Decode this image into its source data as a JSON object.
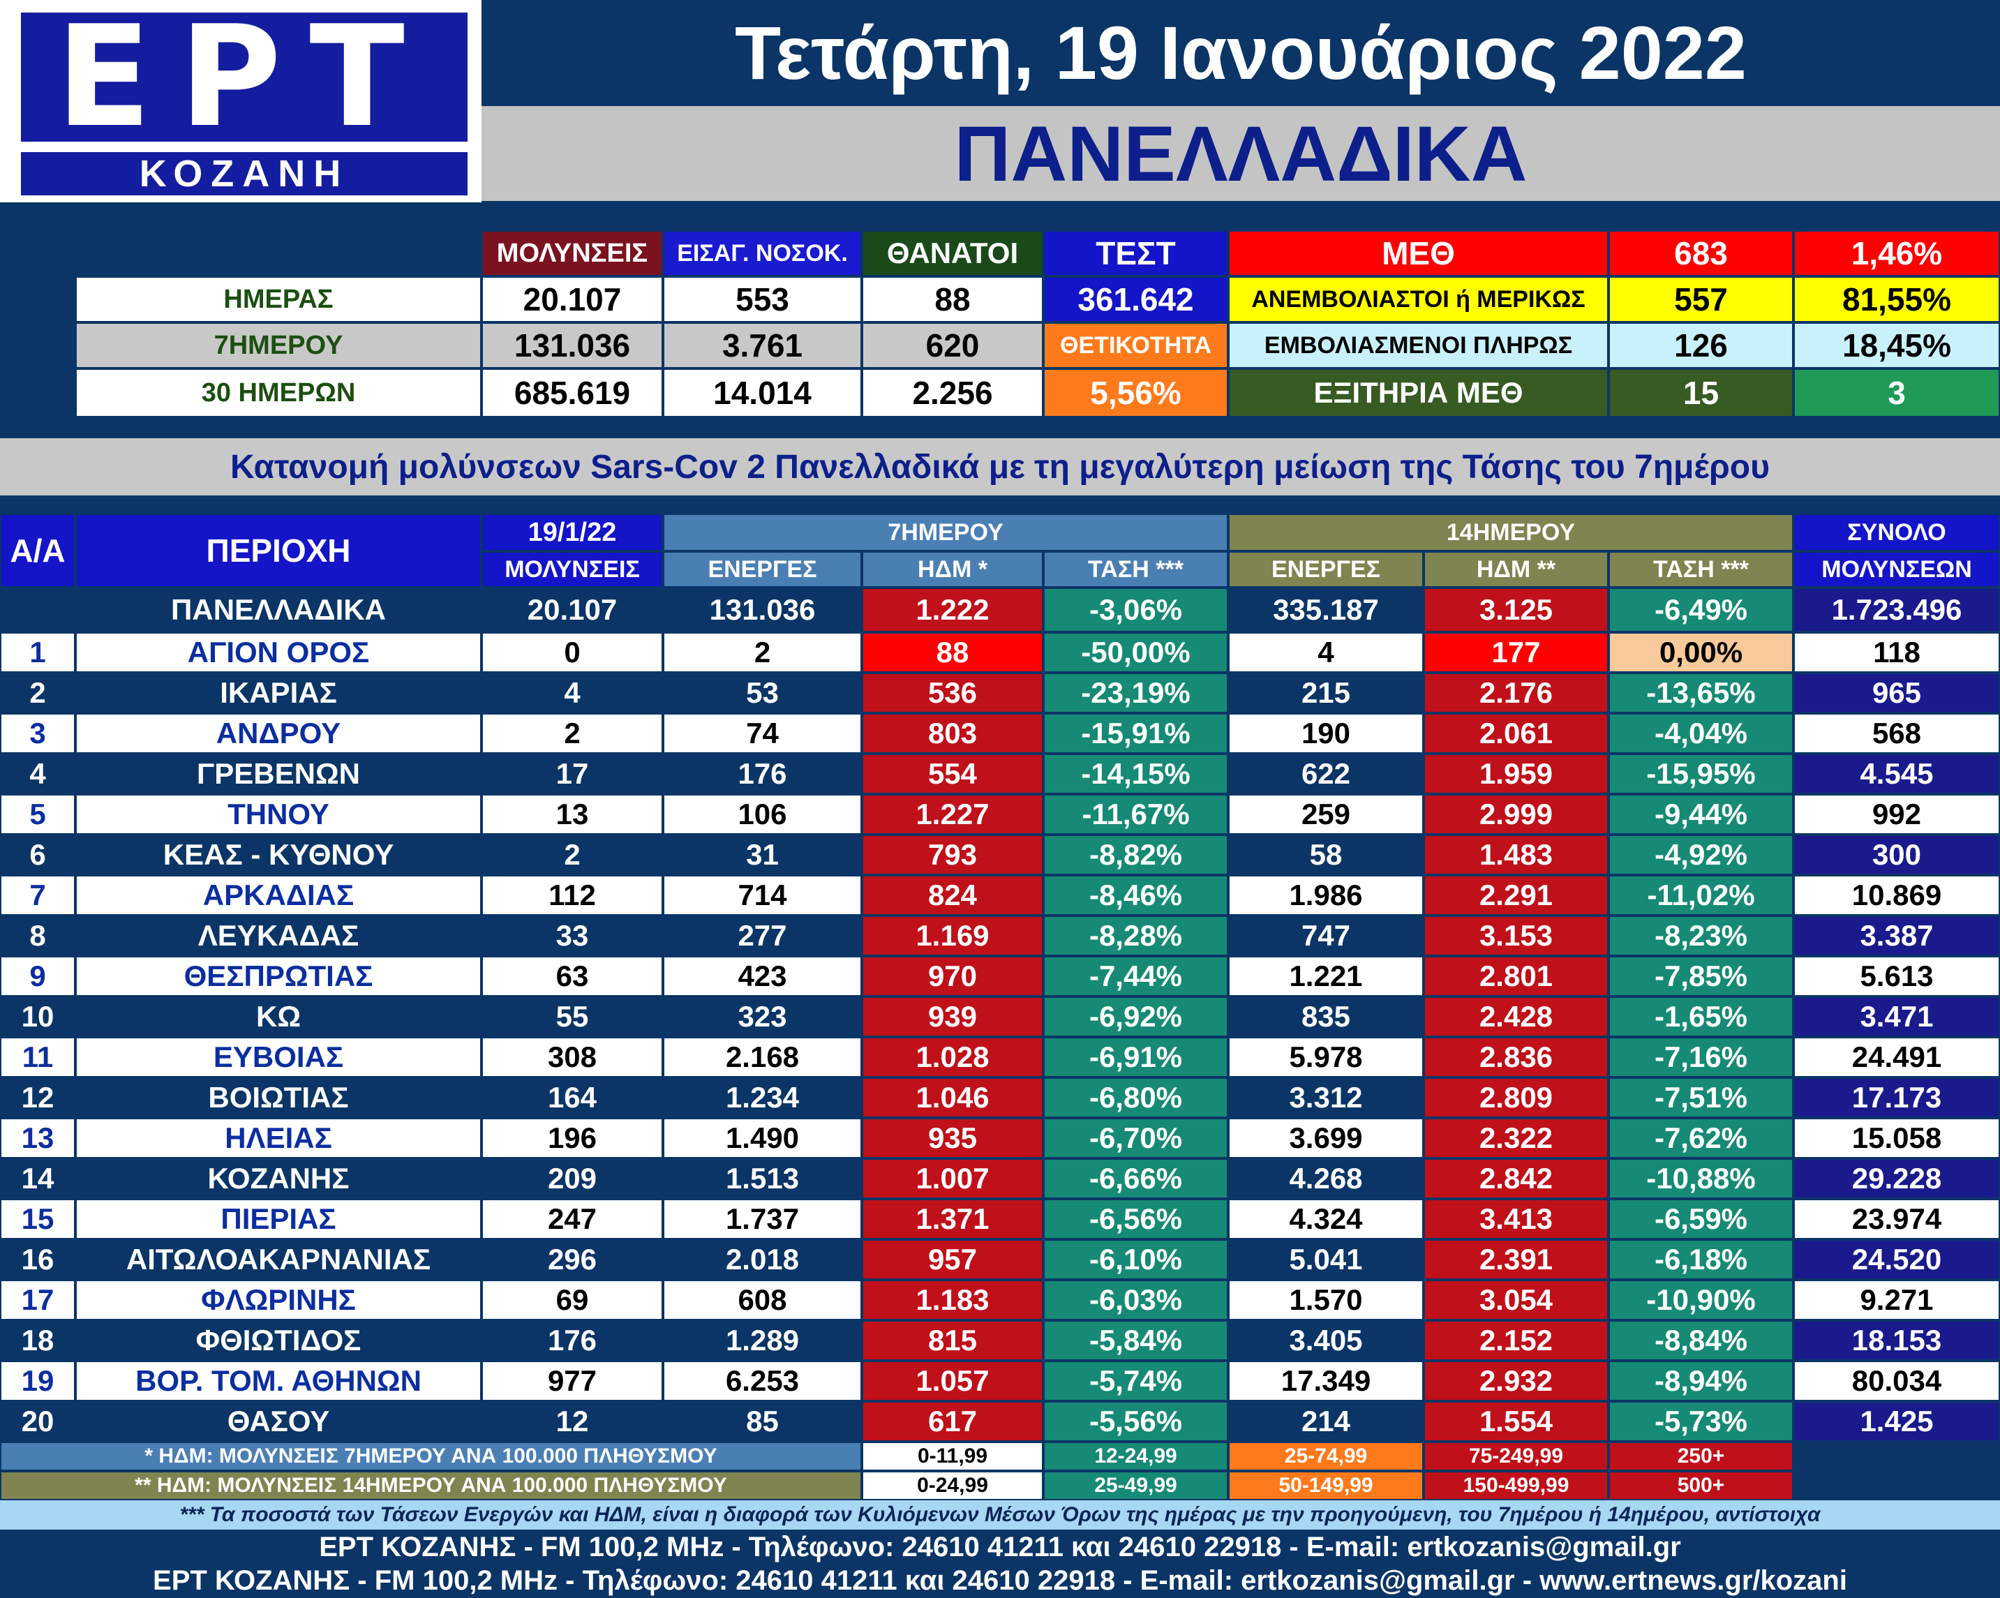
{
  "logo": {
    "brand": "ΕΡΤ",
    "city": "ΚΟΖΑΝΗ"
  },
  "header": {
    "date": "Τετάρτη, 19 Ιανουάριος 2022",
    "region": "ΠΑΝΕΛΛΑΔΙΚΑ"
  },
  "summary": {
    "headers": {
      "infections": "ΜΟΛΥΝΣΕΙΣ",
      "admissions": "ΕΙΣΑΓ. ΝΟΣΟΚ.",
      "deaths": "ΘΑΝΑΤΟΙ",
      "tests": "ΤΕΣΤ",
      "icu": "ΜΕΘ",
      "icu_count": "683",
      "icu_pct": "1,46%"
    },
    "rows": [
      {
        "label": "ΗΜΕΡΑΣ",
        "infections": "20.107",
        "admissions": "553",
        "deaths": "88"
      },
      {
        "label": "7ΗΜΕΡΟΥ",
        "infections": "131.036",
        "admissions": "3.761",
        "deaths": "620"
      },
      {
        "label": "30 ΗΜΕΡΩΝ",
        "infections": "685.619",
        "admissions": "14.014",
        "deaths": "2.256"
      }
    ],
    "tests_value": "361.642",
    "positivity_label": "ΘΕΤΙΚΟΤΗΤΑ",
    "positivity_value": "5,56%",
    "icu_rows": [
      {
        "label": "ΑΝΕΜΒΟΛΙΑΣΤΟΙ ή ΜΕΡΙΚΩΣ",
        "count": "557",
        "pct": "81,55%"
      },
      {
        "label": "ΕΜΒΟΛΙΑΣΜΕΝΟΙ ΠΛΗΡΩΣ",
        "count": "126",
        "pct": "18,45%"
      },
      {
        "label": "ΕΞΙΤΗΡΙΑ ΜΕΘ",
        "count": "15",
        "pct": "3"
      }
    ]
  },
  "subtitle": "Κατανομή μολύνσεων Sars-Cov 2 Πανελλαδικά με τη μεγαλύτερη μείωση της Τάσης του 7ημέρου",
  "table": {
    "headers": {
      "aa": "Α/Α",
      "area": "ΠΕΡΙΟΧΗ",
      "date": "19/1/22",
      "date_sub": "ΜΟΛΥΝΣΕΙΣ",
      "g7": "7ΗΜΕΡΟΥ",
      "g14": "14ΗΜΕΡΟΥ",
      "active": "ΕΝΕΡΓΕΣ",
      "hdm7": "ΗΔΜ *",
      "hdm14": "ΗΔΜ **",
      "trend": "ΤΑΣΗ ***",
      "total": "ΣΥΝΟΛΟ",
      "total_sub": "ΜΟΛΥΝΣΕΩΝ"
    },
    "national": {
      "area": "ΠΑΝΕΛΛΑΔΙΚΑ",
      "day": "20.107",
      "a7": "131.036",
      "h7": "1.222",
      "t7": "-3,06%",
      "a14": "335.187",
      "h14": "3.125",
      "t14": "-6,49%",
      "total": "1.723.496"
    },
    "rows": [
      {
        "n": "1",
        "area": "ΑΓΙΟΝ ΟΡΟΣ",
        "day": "0",
        "a7": "2",
        "h7": "88",
        "t7": "-50,00%",
        "a14": "4",
        "h14": "177",
        "t14": "0,00%",
        "total": "118"
      },
      {
        "n": "2",
        "area": "ΙΚΑΡΙΑΣ",
        "day": "4",
        "a7": "53",
        "h7": "536",
        "t7": "-23,19%",
        "a14": "215",
        "h14": "2.176",
        "t14": "-13,65%",
        "total": "965"
      },
      {
        "n": "3",
        "area": "ΑΝΔΡΟΥ",
        "day": "2",
        "a7": "74",
        "h7": "803",
        "t7": "-15,91%",
        "a14": "190",
        "h14": "2.061",
        "t14": "-4,04%",
        "total": "568"
      },
      {
        "n": "4",
        "area": "ΓΡΕΒΕΝΩΝ",
        "day": "17",
        "a7": "176",
        "h7": "554",
        "t7": "-14,15%",
        "a14": "622",
        "h14": "1.959",
        "t14": "-15,95%",
        "total": "4.545"
      },
      {
        "n": "5",
        "area": "ΤΗΝΟΥ",
        "day": "13",
        "a7": "106",
        "h7": "1.227",
        "t7": "-11,67%",
        "a14": "259",
        "h14": "2.999",
        "t14": "-9,44%",
        "total": "992"
      },
      {
        "n": "6",
        "area": "ΚΕΑΣ - ΚΥΘΝΟΥ",
        "day": "2",
        "a7": "31",
        "h7": "793",
        "t7": "-8,82%",
        "a14": "58",
        "h14": "1.483",
        "t14": "-4,92%",
        "total": "300"
      },
      {
        "n": "7",
        "area": "ΑΡΚΑΔΙΑΣ",
        "day": "112",
        "a7": "714",
        "h7": "824",
        "t7": "-8,46%",
        "a14": "1.986",
        "h14": "2.291",
        "t14": "-11,02%",
        "total": "10.869"
      },
      {
        "n": "8",
        "area": "ΛΕΥΚΑΔΑΣ",
        "day": "33",
        "a7": "277",
        "h7": "1.169",
        "t7": "-8,28%",
        "a14": "747",
        "h14": "3.153",
        "t14": "-8,23%",
        "total": "3.387"
      },
      {
        "n": "9",
        "area": "ΘΕΣΠΡΩΤΙΑΣ",
        "day": "63",
        "a7": "423",
        "h7": "970",
        "t7": "-7,44%",
        "a14": "1.221",
        "h14": "2.801",
        "t14": "-7,85%",
        "total": "5.613"
      },
      {
        "n": "10",
        "area": "ΚΩ",
        "day": "55",
        "a7": "323",
        "h7": "939",
        "t7": "-6,92%",
        "a14": "835",
        "h14": "2.428",
        "t14": "-1,65%",
        "total": "3.471"
      },
      {
        "n": "11",
        "area": "ΕΥΒΟΙΑΣ",
        "day": "308",
        "a7": "2.168",
        "h7": "1.028",
        "t7": "-6,91%",
        "a14": "5.978",
        "h14": "2.836",
        "t14": "-7,16%",
        "total": "24.491"
      },
      {
        "n": "12",
        "area": "ΒΟΙΩΤΙΑΣ",
        "day": "164",
        "a7": "1.234",
        "h7": "1.046",
        "t7": "-6,80%",
        "a14": "3.312",
        "h14": "2.809",
        "t14": "-7,51%",
        "total": "17.173"
      },
      {
        "n": "13",
        "area": "ΗΛΕΙΑΣ",
        "day": "196",
        "a7": "1.490",
        "h7": "935",
        "t7": "-6,70%",
        "a14": "3.699",
        "h14": "2.322",
        "t14": "-7,62%",
        "total": "15.058"
      },
      {
        "n": "14",
        "area": "ΚΟΖΑΝΗΣ",
        "day": "209",
        "a7": "1.513",
        "h7": "1.007",
        "t7": "-6,66%",
        "a14": "4.268",
        "h14": "2.842",
        "t14": "-10,88%",
        "total": "29.228"
      },
      {
        "n": "15",
        "area": "ΠΙΕΡΙΑΣ",
        "day": "247",
        "a7": "1.737",
        "h7": "1.371",
        "t7": "-6,56%",
        "a14": "4.324",
        "h14": "3.413",
        "t14": "-6,59%",
        "total": "23.974"
      },
      {
        "n": "16",
        "area": "ΑΙΤΩΛΟΑΚΑΡΝΑΝΙΑΣ",
        "day": "296",
        "a7": "2.018",
        "h7": "957",
        "t7": "-6,10%",
        "a14": "5.041",
        "h14": "2.391",
        "t14": "-6,18%",
        "total": "24.520"
      },
      {
        "n": "17",
        "area": "ΦΛΩΡΙΝΗΣ",
        "day": "69",
        "a7": "608",
        "h7": "1.183",
        "t7": "-6,03%",
        "a14": "1.570",
        "h14": "3.054",
        "t14": "-10,90%",
        "total": "9.271"
      },
      {
        "n": "18",
        "area": "ΦΘΙΩΤΙΔΟΣ",
        "day": "176",
        "a7": "1.289",
        "h7": "815",
        "t7": "-5,84%",
        "a14": "3.405",
        "h14": "2.152",
        "t14": "-8,84%",
        "total": "18.153"
      },
      {
        "n": "19",
        "area": "ΒΟΡ. ΤΟΜ. ΑΘΗΝΩΝ",
        "day": "977",
        "a7": "6.253",
        "h7": "1.057",
        "t7": "-5,74%",
        "a14": "17.349",
        "h14": "2.932",
        "t14": "-8,94%",
        "total": "80.034"
      },
      {
        "n": "20",
        "area": "ΘΑΣΟΥ",
        "day": "12",
        "a7": "85",
        "h7": "617",
        "t7": "-5,56%",
        "a14": "214",
        "h14": "1.554",
        "t14": "-5,73%",
        "total": "1.425"
      }
    ]
  },
  "legend": {
    "note7": "* ΗΔΜ: ΜΟΛΥΝΣΕΙΣ 7ΗΜΕΡΟΥ ΑΝΑ 100.000 ΠΛΗΘΥΣΜΟΥ",
    "note14": "** ΗΔΜ: ΜΟΛΥΝΣΕΙΣ 14ΗΜΕΡΟΥ ΑΝΑ 100.000 ΠΛΗΘΥΣΜΟΥ",
    "ranges7": [
      "0-11,99",
      "12-24,99",
      "25-74,99",
      "75-249,99",
      "250+"
    ],
    "ranges14": [
      "0-24,99",
      "25-49,99",
      "50-149,99",
      "150-499,99",
      "500+"
    ]
  },
  "footnote": "*** Τα ποσοστά των Τάσεων Ενεργών και ΗΔΜ, είναι η διαφορά των Κυλιόμενων Μέσων Όρων της ημέρας με την προηγούμενη, του 7ημέρου ή 14ημέρου, αντίστοιχα",
  "footer": {
    "line1": "ΕΡΤ ΚΟΖΑΝΗΣ - FM 100,2 MHz - Τηλέφωνο:  24610 41211 και 24610 22918 - E-mail: ertkozanis@gmail.gr",
    "line2": "ΕΡΤ ΚΟΖΑΝΗΣ - FM 100,2 MHz - Τηλέφωνο:  24610 41211 και 24610 22918 - E-mail: ertkozanis@gmail.gr - www.ertnews.gr/kozani"
  }
}
